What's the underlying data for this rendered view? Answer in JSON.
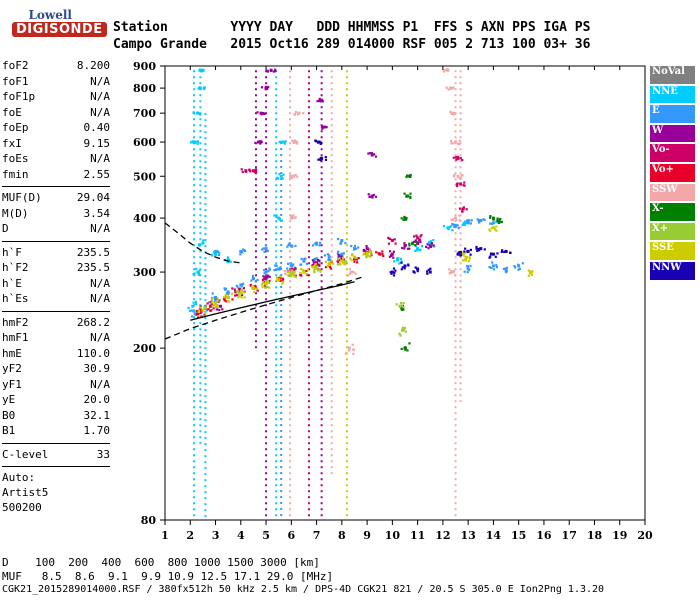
{
  "logo": {
    "line1": "Lowell",
    "line2": "DIGISONDE"
  },
  "header": {
    "row1": "Station        YYYY DAY   DDD HHMMSS P1  FFS S AXN PPS IGA PS",
    "row2": "Campo Grande   2015 Oct16 289 014000 RSF 005 2 713 100 03+ 36"
  },
  "params": {
    "group1": [
      {
        "name": "foF2",
        "value": "8.200"
      },
      {
        "name": "foF1",
        "value": "N/A"
      },
      {
        "name": "foF1p",
        "value": "N/A"
      },
      {
        "name": "foE",
        "value": "N/A"
      },
      {
        "name": "foEp",
        "value": "0.40"
      },
      {
        "name": "fxI",
        "value": "9.15"
      },
      {
        "name": "foEs",
        "value": "N/A"
      },
      {
        "name": "fmin",
        "value": "2.55"
      }
    ],
    "group2": [
      {
        "name": "MUF(D)",
        "value": "29.04"
      },
      {
        "name": "M(D)",
        "value": "3.54"
      },
      {
        "name": "D",
        "value": "N/A"
      }
    ],
    "group3": [
      {
        "name": "h`F",
        "value": "235.5"
      },
      {
        "name": "h`F2",
        "value": "235.5"
      },
      {
        "name": "h`E",
        "value": "N/A"
      },
      {
        "name": "h`Es",
        "value": "N/A"
      }
    ],
    "group4": [
      {
        "name": "hmF2",
        "value": "268.2"
      },
      {
        "name": "hmF1",
        "value": "N/A"
      },
      {
        "name": "hmE",
        "value": "110.0"
      },
      {
        "name": "yF2",
        "value": "30.9"
      },
      {
        "name": "yF1",
        "value": "N/A"
      },
      {
        "name": "yE",
        "value": "20.0"
      },
      {
        "name": "B0",
        "value": "32.1"
      },
      {
        "name": "B1",
        "value": "1.70"
      }
    ],
    "clevel": {
      "name": "C-level",
      "value": "33"
    },
    "notes": [
      "Auto:",
      "Artist5",
      "500200"
    ]
  },
  "legend": [
    {
      "label": "NoVal",
      "color": "#808080"
    },
    {
      "label": "NNE",
      "color": "#00ccff"
    },
    {
      "label": "E",
      "color": "#3399ff"
    },
    {
      "label": "W",
      "color": "#990099"
    },
    {
      "label": "Vo-",
      "color": "#cc0066"
    },
    {
      "label": "Vo+",
      "color": "#e8002a"
    },
    {
      "label": "SSW",
      "color": "#f2a8a8"
    },
    {
      "label": "X-",
      "color": "#007f00"
    },
    {
      "label": "X+",
      "color": "#99cc33"
    },
    {
      "label": "SSE",
      "color": "#cccc00"
    },
    {
      "label": "NNW",
      "color": "#1a00b3"
    }
  ],
  "footer": {
    "row1": "D    100  200  400  600  800 1000 1500 3000 [km]",
    "row2": "MUF   8.5  8.6  9.1  9.9 10.9 12.5 17.1 29.0 [MHz]",
    "row3": "CGK21_2015289014000.RSF / 380fx512h 50 kHz 2.5 km / DPS-4D CGK21 821 / 20.5 S 305.0 E Ion2Png 1.3.20"
  },
  "chart_data": {
    "type": "scatter",
    "xlim": [
      1,
      20
    ],
    "ylim": [
      80,
      900
    ],
    "x_ticks": [
      "1",
      "2",
      "3",
      "4",
      "5",
      "6",
      "7",
      "8",
      "9",
      "10",
      "11",
      "12",
      "13",
      "14",
      "15",
      "16",
      "17",
      "18",
      "19",
      "20"
    ],
    "y_ticks": [
      "80",
      "200",
      "300",
      "400",
      "500",
      "600",
      "700",
      "800",
      "900"
    ],
    "y_scale": "log",
    "grid": false,
    "series": [
      {
        "color": "#3399ff",
        "points": [
          [
            2.2,
            240
          ],
          [
            2.6,
            250
          ],
          [
            3,
            262
          ],
          [
            3.5,
            270
          ],
          [
            4,
            280
          ],
          [
            4.5,
            290
          ],
          [
            5,
            300
          ],
          [
            5.5,
            305
          ],
          [
            6,
            310
          ],
          [
            6.5,
            318
          ],
          [
            7,
            322
          ],
          [
            7.5,
            325
          ],
          [
            8,
            330
          ],
          [
            8.5,
            340
          ],
          [
            3,
            330
          ],
          [
            4,
            335
          ],
          [
            5,
            340
          ],
          [
            6,
            345
          ],
          [
            7,
            350
          ],
          [
            8,
            355
          ],
          [
            12.5,
            385
          ],
          [
            13,
            390
          ],
          [
            13.5,
            395
          ],
          [
            14,
            390
          ],
          [
            13,
            305
          ],
          [
            14,
            310
          ],
          [
            14.5,
            305
          ],
          [
            15,
            310
          ]
        ]
      },
      {
        "color": "#00ccff",
        "points": [
          [
            2.1,
            250
          ],
          [
            2.3,
            300
          ],
          [
            2.5,
            350
          ],
          [
            3,
            330
          ],
          [
            3.5,
            320
          ],
          [
            2.2,
            600
          ],
          [
            2.3,
            700
          ],
          [
            2.4,
            800
          ],
          [
            2.5,
            880
          ],
          [
            5.5,
            400
          ],
          [
            5.6,
            500
          ],
          [
            5.7,
            600
          ],
          [
            10.2,
            320
          ],
          [
            11,
            340
          ],
          [
            11.5,
            350
          ],
          [
            12.2,
            380
          ],
          [
            12.9,
            390
          ]
        ]
      },
      {
        "color": "#990099",
        "points": [
          [
            3.2,
            250
          ],
          [
            4,
            270
          ],
          [
            5,
            290
          ],
          [
            6,
            300
          ],
          [
            7,
            315
          ],
          [
            8,
            325
          ],
          [
            9,
            340
          ],
          [
            10,
            330
          ],
          [
            10.5,
            345
          ],
          [
            11,
            350
          ],
          [
            11.5,
            345
          ],
          [
            4.7,
            600
          ],
          [
            4.8,
            700
          ],
          [
            5,
            800
          ],
          [
            5.2,
            880
          ],
          [
            7.3,
            650
          ],
          [
            7.2,
            750
          ],
          [
            9.2,
            560
          ],
          [
            9.2,
            450
          ]
        ]
      },
      {
        "color": "#cc0066",
        "points": [
          [
            2.4,
            245
          ],
          [
            3,
            255
          ],
          [
            3.8,
            270
          ],
          [
            5,
            285
          ],
          [
            6,
            300
          ],
          [
            7,
            310
          ],
          [
            8,
            320
          ],
          [
            9,
            330
          ],
          [
            10,
            355
          ],
          [
            11,
            360
          ],
          [
            12.8,
            420
          ],
          [
            12.7,
            480
          ],
          [
            12.6,
            550
          ],
          [
            4.2,
            515
          ],
          [
            4.5,
            515
          ]
        ]
      },
      {
        "color": "#e8002a",
        "points": [
          [
            2.3,
            240
          ],
          [
            2.8,
            250
          ],
          [
            3.5,
            262
          ],
          [
            4.5,
            275
          ],
          [
            5.5,
            290
          ],
          [
            6.5,
            300
          ],
          [
            7.5,
            312
          ],
          [
            8.5,
            322
          ],
          [
            9.5,
            330
          ]
        ]
      },
      {
        "color": "#f2a8a8",
        "points": [
          [
            5.9,
            300
          ],
          [
            6,
            400
          ],
          [
            6.1,
            500
          ],
          [
            6.2,
            600
          ],
          [
            6.3,
            700
          ],
          [
            12.4,
            300
          ],
          [
            12.5,
            400
          ],
          [
            12.6,
            500
          ],
          [
            12.5,
            600
          ],
          [
            12.4,
            700
          ],
          [
            12.3,
            800
          ],
          [
            12.2,
            880
          ],
          [
            8.3,
            200
          ],
          [
            8.4,
            300
          ]
        ]
      },
      {
        "color": "#007f00",
        "points": [
          [
            10.5,
            400
          ],
          [
            10.6,
            450
          ],
          [
            10.7,
            500
          ],
          [
            10.8,
            350
          ],
          [
            10.4,
            250
          ],
          [
            10.5,
            200
          ],
          [
            14,
            400
          ],
          [
            14.2,
            395
          ]
        ]
      },
      {
        "color": "#99cc33",
        "points": [
          [
            3,
            255
          ],
          [
            4,
            268
          ],
          [
            5,
            282
          ],
          [
            6,
            298
          ],
          [
            7,
            306
          ],
          [
            8,
            318
          ],
          [
            9,
            330
          ],
          [
            10.3,
            250
          ],
          [
            10.4,
            220
          ]
        ]
      },
      {
        "color": "#cccc00",
        "points": [
          [
            2.5,
            245
          ],
          [
            3,
            252
          ],
          [
            3.5,
            262
          ],
          [
            4,
            268
          ],
          [
            4.5,
            275
          ],
          [
            5,
            282
          ],
          [
            5.5,
            288
          ],
          [
            6,
            296
          ],
          [
            6.5,
            300
          ],
          [
            7,
            308
          ],
          [
            7.5,
            312
          ],
          [
            8,
            318
          ],
          [
            8.5,
            325
          ],
          [
            9,
            332
          ],
          [
            12.8,
            330
          ],
          [
            12.9,
            320
          ],
          [
            14,
            380
          ],
          [
            15.5,
            300
          ]
        ]
      },
      {
        "color": "#1a00b3",
        "points": [
          [
            10,
            300
          ],
          [
            10.5,
            310
          ],
          [
            11,
            305
          ],
          [
            11.5,
            300
          ],
          [
            12.6,
            330
          ],
          [
            13,
            335
          ],
          [
            13.5,
            340
          ],
          [
            14,
            330
          ],
          [
            14.5,
            335
          ],
          [
            7.1,
            600
          ],
          [
            7.2,
            550
          ]
        ]
      }
    ],
    "vertical_streaks": [
      {
        "x": 2.15,
        "from": 80,
        "to": 880,
        "color": "#00ccff"
      },
      {
        "x": 2.4,
        "from": 120,
        "to": 880,
        "color": "#00ccff"
      },
      {
        "x": 2.6,
        "from": 80,
        "to": 700,
        "color": "#00ccff"
      },
      {
        "x": 4.6,
        "from": 200,
        "to": 880,
        "color": "#990099"
      },
      {
        "x": 5.0,
        "from": 80,
        "to": 880,
        "color": "#990099"
      },
      {
        "x": 5.4,
        "from": 80,
        "to": 880,
        "color": "#00ccff"
      },
      {
        "x": 5.6,
        "from": 80,
        "to": 600,
        "color": "#3399ff"
      },
      {
        "x": 5.95,
        "from": 80,
        "to": 880,
        "color": "#f2a8a8"
      },
      {
        "x": 6.7,
        "from": 80,
        "to": 880,
        "color": "#cc0066"
      },
      {
        "x": 7.2,
        "from": 80,
        "to": 880,
        "color": "#990099"
      },
      {
        "x": 7.6,
        "from": 100,
        "to": 880,
        "color": "#f2a8a8"
      },
      {
        "x": 8.2,
        "from": 80,
        "to": 880,
        "color": "#cccc00"
      },
      {
        "x": 12.5,
        "from": 80,
        "to": 880,
        "color": "#f2a8a8"
      },
      {
        "x": 12.7,
        "from": 150,
        "to": 880,
        "color": "#f2a8a8"
      }
    ],
    "curves": [
      {
        "style": "dashed",
        "points": [
          [
            1,
            390
          ],
          [
            1.5,
            370
          ],
          [
            2,
            350
          ],
          [
            2.5,
            335
          ],
          [
            3,
            325
          ],
          [
            3.5,
            318
          ],
          [
            4,
            315
          ]
        ]
      },
      {
        "style": "dashed",
        "points": [
          [
            1,
            210
          ],
          [
            2,
            222
          ],
          [
            3,
            232
          ],
          [
            4,
            242
          ],
          [
            5,
            252
          ],
          [
            6,
            262
          ],
          [
            7,
            272
          ],
          [
            8,
            282
          ],
          [
            8.8,
            292
          ]
        ]
      },
      {
        "style": "solid",
        "points": [
          [
            2,
            232
          ],
          [
            3,
            240
          ],
          [
            4,
            248
          ],
          [
            5,
            256
          ],
          [
            6,
            264
          ],
          [
            7,
            272
          ],
          [
            8,
            280
          ],
          [
            8.5,
            285
          ]
        ]
      }
    ]
  }
}
